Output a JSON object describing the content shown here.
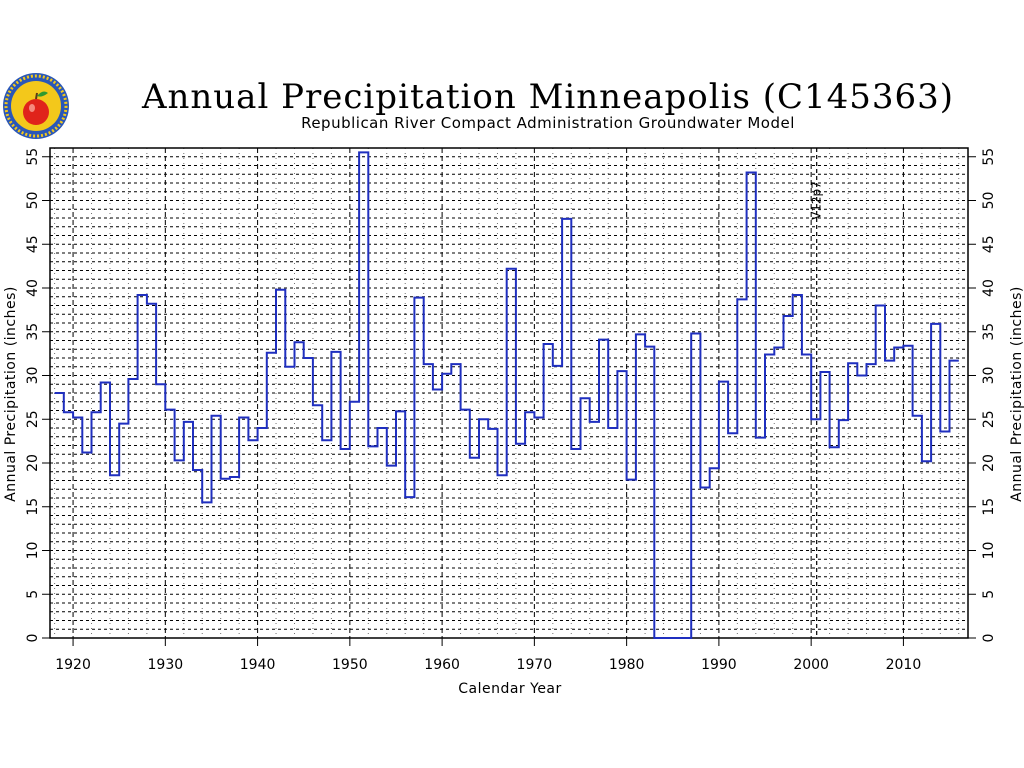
{
  "colors": {
    "series": "#1f2fbf",
    "grid": "#000000",
    "logo_ring": "#2a57b8",
    "logo_face": "#f3c81b",
    "apple": "#e0231b",
    "leaf": "#2f9a2f"
  },
  "logo": {
    "name": "apple-seal-logo"
  },
  "chart_data": {
    "type": "line",
    "step": true,
    "title": "Annual Precipitation Minneapolis (C145363)",
    "subtitle": "Republican River Compact Administration Groundwater Model",
    "xlabel": "Calendar Year",
    "ylabel": "Annual Precipitation (inches)",
    "ylabel_right": "Annual Precipitation (inches)",
    "xlim": [
      1917.5,
      2017
    ],
    "ylim": [
      0,
      56
    ],
    "x_ticks": [
      1920,
      1930,
      1940,
      1950,
      1960,
      1970,
      1980,
      1990,
      2000,
      2010
    ],
    "y_ticks": [
      0,
      5,
      10,
      15,
      20,
      25,
      30,
      35,
      40,
      45,
      50,
      55
    ],
    "y_tick_labels": [
      "0",
      "5",
      "10",
      "15",
      "20",
      "25",
      "30",
      "35",
      "40",
      "45",
      "50",
      "55"
    ],
    "x_tick_labels": [
      "1920",
      "1930",
      "1940",
      "1950",
      "1960",
      "1970",
      "1980",
      "1990",
      "2000",
      "2010"
    ],
    "minor_gridlines_y_step": 1,
    "minor_gridlines_x_step": 2,
    "annotation": {
      "x": 2000.6,
      "text": "V12p7"
    },
    "series": [
      {
        "years": [
          1918,
          1919,
          1920,
          1921,
          1922,
          1923,
          1924,
          1925,
          1926,
          1927,
          1928,
          1929,
          1930,
          1931,
          1932,
          1933,
          1934,
          1935,
          1936,
          1937,
          1938,
          1939,
          1940,
          1941,
          1942,
          1943,
          1944,
          1945,
          1946,
          1947,
          1948,
          1949,
          1950,
          1951,
          1952,
          1953,
          1954,
          1955,
          1956,
          1957,
          1958,
          1959,
          1960,
          1961,
          1962,
          1963,
          1964,
          1965,
          1966,
          1967,
          1968,
          1969,
          1970,
          1971,
          1972,
          1973,
          1974,
          1975,
          1976,
          1977,
          1978,
          1979,
          1980,
          1981,
          1982,
          1983,
          1984,
          1985,
          1986,
          1987,
          1988,
          1989,
          1990,
          1991,
          1992,
          1993,
          1994,
          1995,
          1996,
          1997,
          1998,
          1999,
          2000,
          2001,
          2002,
          2003,
          2004,
          2005,
          2006,
          2007,
          2008,
          2009,
          2010,
          2011,
          2012,
          2013,
          2014,
          2015
        ],
        "values": [
          28.0,
          25.8,
          25.2,
          21.2,
          25.8,
          29.2,
          18.6,
          24.5,
          29.6,
          39.2,
          38.2,
          29.0,
          26.1,
          20.3,
          24.7,
          19.2,
          15.5,
          25.4,
          18.2,
          18.4,
          25.2,
          22.6,
          24.0,
          32.6,
          39.8,
          31.0,
          33.8,
          32.0,
          26.6,
          22.6,
          32.7,
          21.6,
          27.0,
          55.5,
          21.9,
          24.0,
          19.7,
          25.9,
          16.1,
          38.9,
          31.3,
          28.4,
          30.2,
          31.3,
          26.1,
          20.6,
          25.0,
          23.9,
          18.6,
          42.2,
          22.2,
          25.8,
          25.2,
          33.6,
          31.1,
          47.9,
          21.6,
          27.4,
          24.7,
          34.1,
          24.0,
          30.5,
          18.1,
          34.7,
          33.3,
          0,
          0,
          0,
          0,
          34.8,
          17.2,
          19.4,
          29.3,
          23.4,
          38.7,
          53.2,
          22.9,
          32.4,
          33.2,
          36.8,
          39.2,
          32.4,
          25.0,
          30.4,
          21.8,
          24.9,
          31.4,
          30.0,
          31.3,
          38.0,
          31.7,
          33.2,
          33.4,
          25.4,
          20.2,
          35.9,
          23.6,
          31.7
        ],
        "end_year": 2016
      }
    ]
  }
}
